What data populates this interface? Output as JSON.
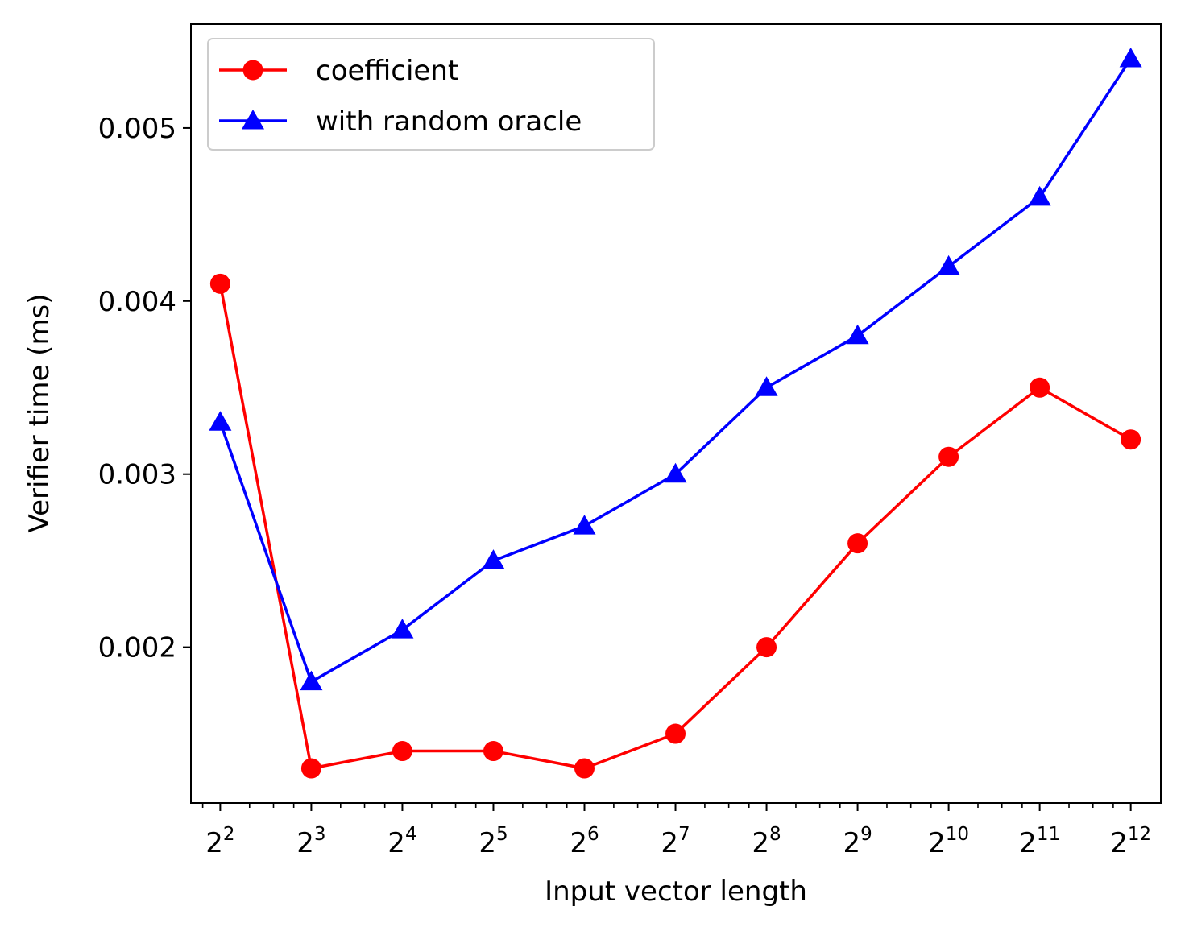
{
  "chart_data": {
    "type": "line",
    "title": "",
    "xlabel": "Input vector length",
    "ylabel": "Verifier time (ms)",
    "x_scale": "log2",
    "x": [
      4,
      8,
      16,
      32,
      64,
      128,
      256,
      512,
      1024,
      2048,
      4096
    ],
    "x_tick_labels": [
      {
        "base": "2",
        "exp": "2"
      },
      {
        "base": "2",
        "exp": "3"
      },
      {
        "base": "2",
        "exp": "4"
      },
      {
        "base": "2",
        "exp": "5"
      },
      {
        "base": "2",
        "exp": "6"
      },
      {
        "base": "2",
        "exp": "7"
      },
      {
        "base": "2",
        "exp": "8"
      },
      {
        "base": "2",
        "exp": "9"
      },
      {
        "base": "2",
        "exp": "10"
      },
      {
        "base": "2",
        "exp": "11"
      },
      {
        "base": "2",
        "exp": "12"
      }
    ],
    "xlim": [
      3.2,
      5150
    ],
    "ylim": [
      0.0011,
      0.0056
    ],
    "y_ticks": [
      0.002,
      0.003,
      0.004,
      0.005
    ],
    "y_tick_labels": [
      "0.002",
      "0.003",
      "0.004",
      "0.005"
    ],
    "grid": false,
    "legend_position": "top-left",
    "series": [
      {
        "name": "coefficient",
        "color": "#ff0000",
        "marker": "circle",
        "values": [
          0.0041,
          0.0013,
          0.0014,
          0.0014,
          0.0013,
          0.0015,
          0.002,
          0.0026,
          0.0031,
          0.0035,
          0.0032
        ]
      },
      {
        "name": "with random oracle",
        "color": "#0000ff",
        "marker": "triangle",
        "values": [
          0.0033,
          0.0018,
          0.0021,
          0.0025,
          0.0027,
          0.003,
          0.0035,
          0.0038,
          0.0042,
          0.0046,
          0.0054
        ]
      }
    ]
  }
}
